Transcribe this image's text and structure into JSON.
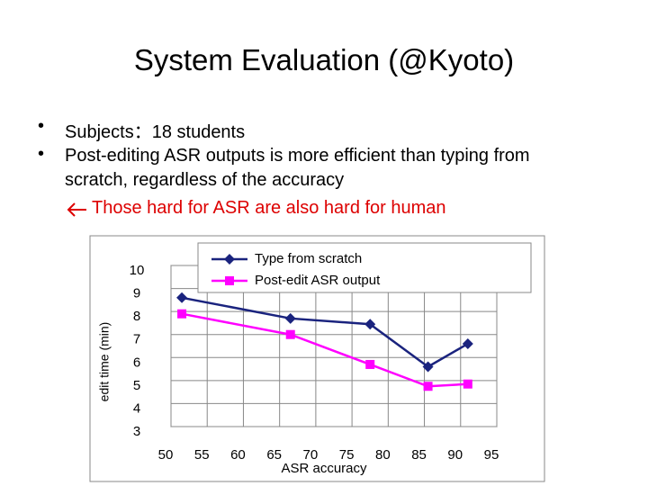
{
  "slide": {
    "title": "System Evaluation (@Kyoto)",
    "bullets": [
      "Subjects：18 students",
      "Post-editing ASR outputs is more efficient than typing from scratch, regardless of the accuracy"
    ],
    "note": "Those hard for ASR are also hard for human"
  },
  "chart_data": {
    "type": "line",
    "x_label": "ASR accuracy",
    "y_label": "edit time (min)",
    "x": [
      51.5,
      66.5,
      77.5,
      85.5,
      91
    ],
    "series": [
      {
        "name": "Type from scratch",
        "color": "#1a237e",
        "marker": "diamond",
        "values": [
          8.6,
          7.7,
          7.45,
          5.6,
          6.6
        ]
      },
      {
        "name": "Post-edit ASR output",
        "color": "#ff00ff",
        "marker": "square",
        "values": [
          7.9,
          7.0,
          5.7,
          4.75,
          4.85
        ]
      }
    ],
    "xlim": [
      50,
      95
    ],
    "xticks": [
      50,
      55,
      60,
      65,
      70,
      75,
      80,
      85,
      90,
      95
    ],
    "ylim": [
      3,
      10
    ],
    "yticks": [
      3,
      4,
      5,
      6,
      7,
      8,
      9,
      10
    ],
    "grid": true,
    "legend": "top-right"
  }
}
